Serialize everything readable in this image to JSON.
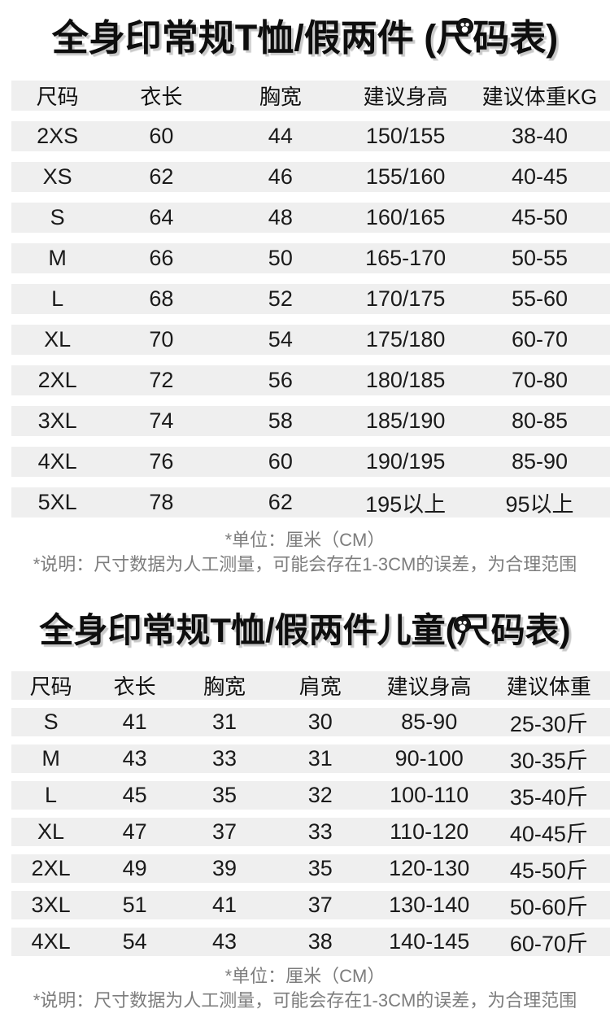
{
  "colors": {
    "row_bg": "#efefef",
    "title_text": "#0e0e0e",
    "cell_text": "#1a1a1a",
    "note_text": "#7d7d7d"
  },
  "badge_icon": "logo-sticker",
  "sections": [
    {
      "title": "全身印常规T恤/假两件 (尺码表)",
      "headers": [
        "尺码",
        "衣长",
        "胸宽",
        "建议身高",
        "建议体重KG"
      ],
      "rows": [
        [
          "2XS",
          "60",
          "44",
          "150/155",
          "38-40"
        ],
        [
          "XS",
          "62",
          "46",
          "155/160",
          "40-45"
        ],
        [
          "S",
          "64",
          "48",
          "160/165",
          "45-50"
        ],
        [
          "M",
          "66",
          "50",
          "165-170",
          "50-55"
        ],
        [
          "L",
          "68",
          "52",
          "170/175",
          "55-60"
        ],
        [
          "XL",
          "70",
          "54",
          "175/180",
          "60-70"
        ],
        [
          "2XL",
          "72",
          "56",
          "180/185",
          "70-80"
        ],
        [
          "3XL",
          "74",
          "58",
          "185/190",
          "80-85"
        ],
        [
          "4XL",
          "76",
          "60",
          "190/195",
          "85-90"
        ],
        [
          "5XL",
          "78",
          "62",
          "195以上",
          "95以上"
        ]
      ],
      "notes": [
        "*单位：厘米（CM）",
        "*说明：尺寸数据为人工测量，可能会存在1-3CM的误差，为合理范围"
      ]
    },
    {
      "title": "全身印常规T恤/假两件儿童(尺码表)",
      "headers": [
        "尺码",
        "衣长",
        "胸宽",
        "肩宽",
        "建议身高",
        "建议体重"
      ],
      "rows": [
        [
          "S",
          "41",
          "31",
          "30",
          "85-90",
          "25-30斤"
        ],
        [
          "M",
          "43",
          "33",
          "31",
          "90-100",
          "30-35斤"
        ],
        [
          "L",
          "45",
          "35",
          "32",
          "100-110",
          "35-40斤"
        ],
        [
          "XL",
          "47",
          "37",
          "33",
          "110-120",
          "40-45斤"
        ],
        [
          "2XL",
          "49",
          "39",
          "35",
          "120-130",
          "45-50斤"
        ],
        [
          "3XL",
          "51",
          "41",
          "37",
          "130-140",
          "50-60斤"
        ],
        [
          "4XL",
          "54",
          "43",
          "38",
          "140-145",
          "60-70斤"
        ]
      ],
      "notes": [
        "*单位：厘米（CM）",
        "*说明：尺寸数据为人工测量，可能会存在1-3CM的误差，为合理范围"
      ]
    }
  ]
}
